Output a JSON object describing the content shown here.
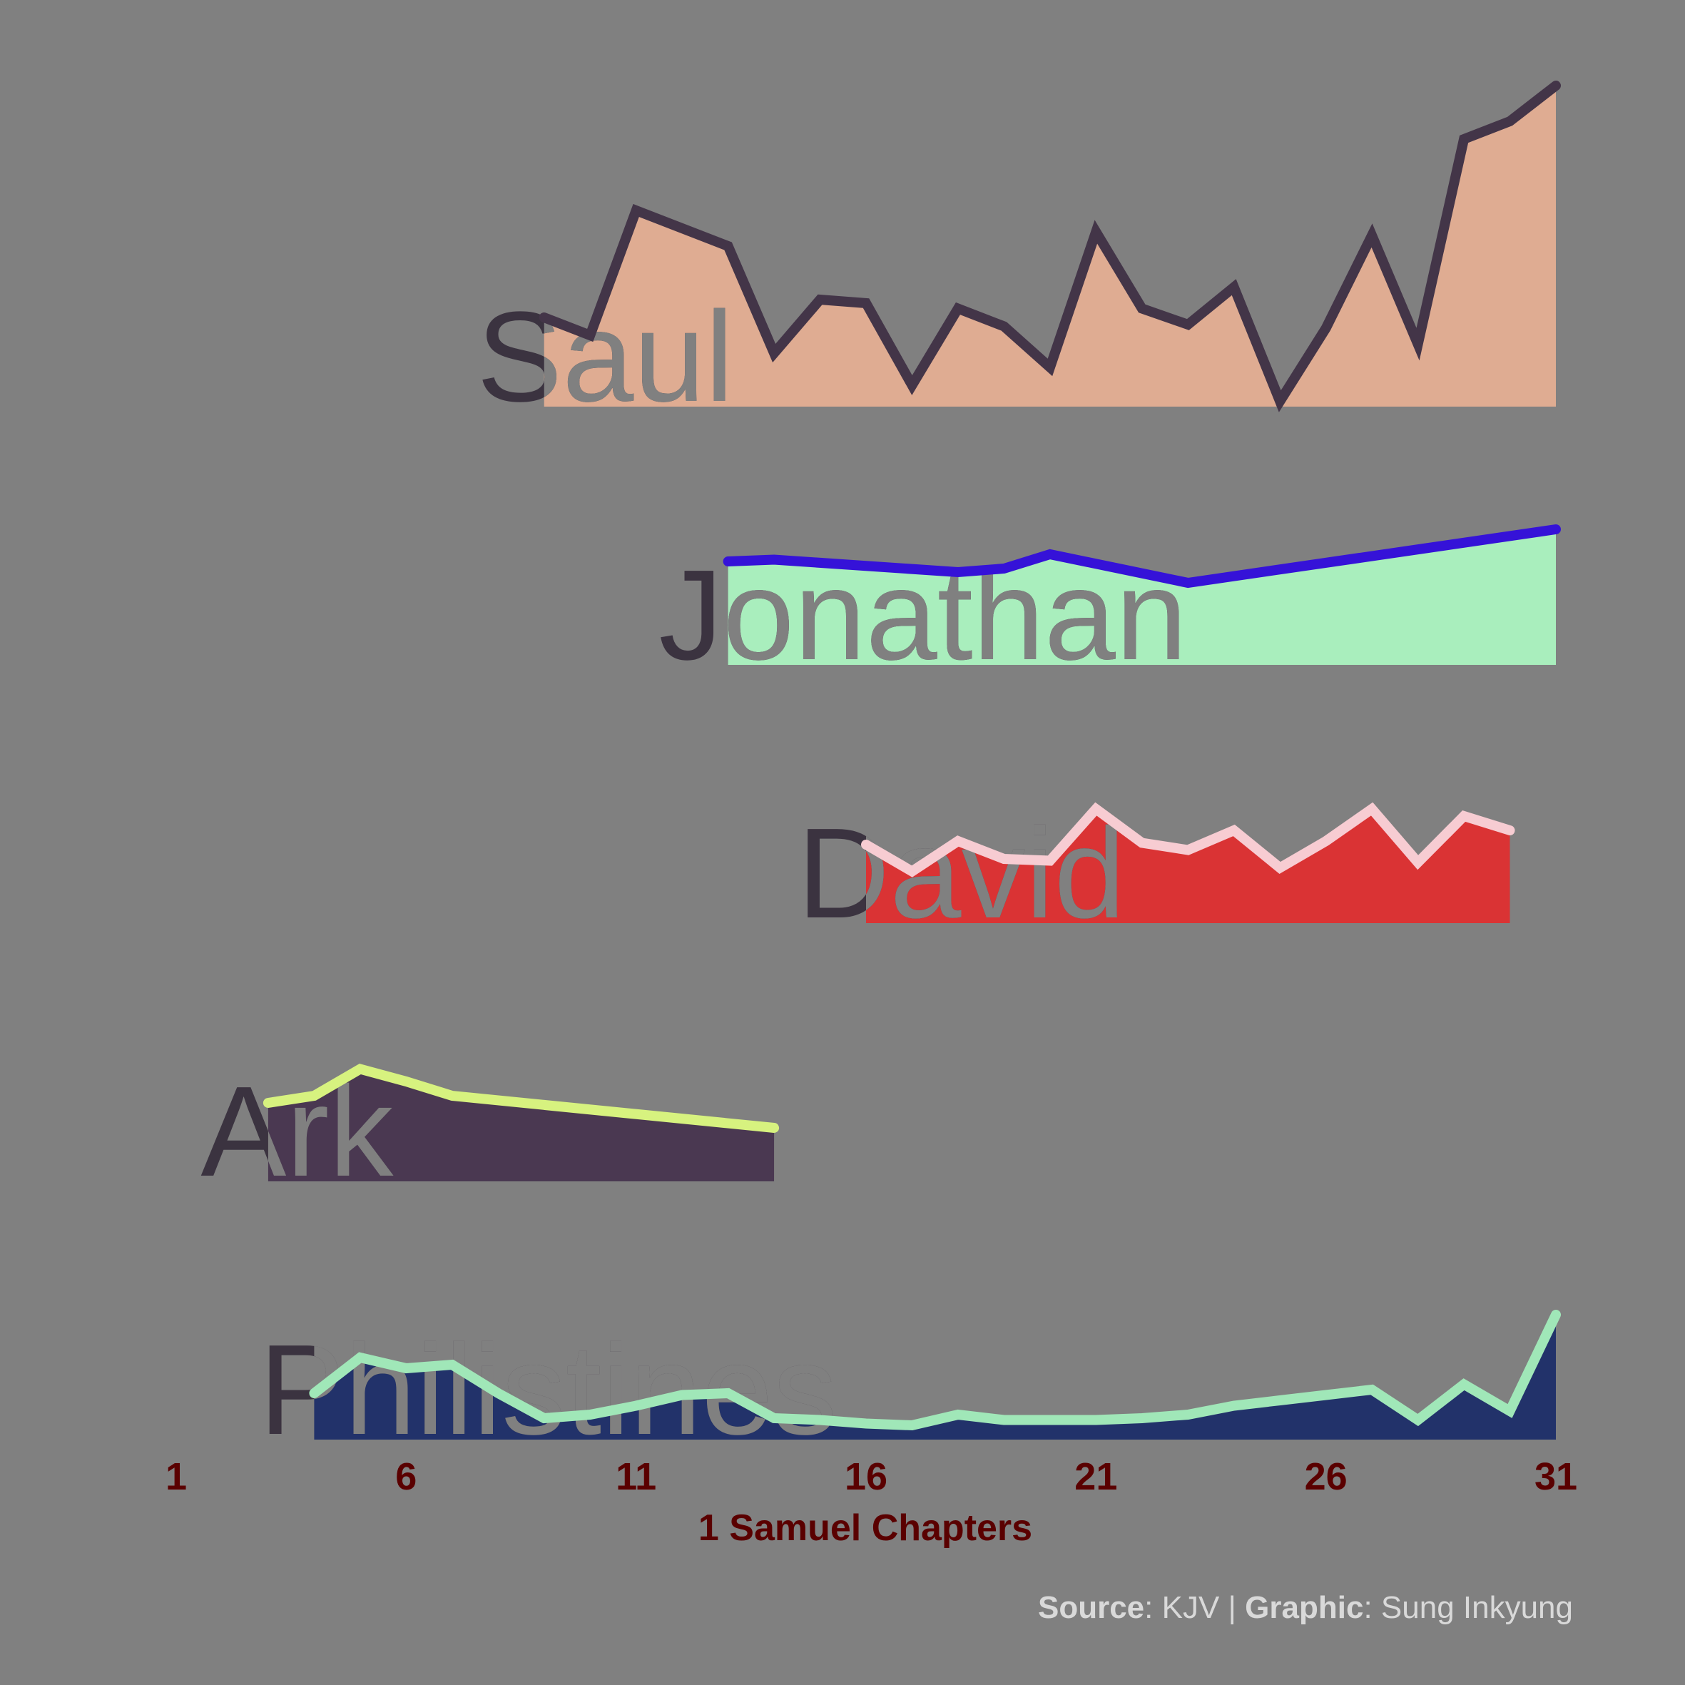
{
  "chart_data": {
    "type": "area",
    "xlabel": "1 Samuel Chapters",
    "xlim": [
      1,
      31
    ],
    "xticks": [
      "1",
      "6",
      "11",
      "16",
      "21",
      "26",
      "31"
    ],
    "background": "#808080",
    "credit": {
      "source_label": "Source",
      "source_value": ": KJV | ",
      "graphic_label": "Graphic",
      "graphic_value": ": Sung Inkyung"
    },
    "series": [
      {
        "name": "Saul",
        "fill": "#dfac92",
        "line": "#433548",
        "x": [
          9,
          10,
          11,
          12,
          13,
          14,
          15,
          16,
          17,
          18,
          19,
          20,
          21,
          22,
          23,
          24,
          25,
          26,
          27,
          28,
          29,
          30,
          31
        ],
        "y": [
          5,
          4,
          11,
          10,
          9,
          3,
          6,
          5.8,
          1.2,
          5.5,
          4.5,
          2.2,
          9.8,
          5.5,
          4.6,
          6.7,
          0.3,
          4.4,
          9.6,
          3.5,
          15,
          16,
          18
        ]
      },
      {
        "name": "Jonathan",
        "fill": "#a9eebd",
        "line": "#3512d8",
        "x": [
          13,
          14,
          18,
          19,
          20,
          23,
          31
        ],
        "y": [
          5.8,
          5.9,
          5.2,
          5.4,
          6.2,
          4.6,
          7.6
        ]
      },
      {
        "name": "David",
        "fill": "#da3334",
        "line": "#f7ccd2",
        "x": [
          16,
          17,
          18,
          19,
          20,
          21,
          22,
          23,
          24,
          25,
          26,
          27,
          28,
          29,
          30
        ],
        "y": [
          4.4,
          2.9,
          4.6,
          3.6,
          3.5,
          6.4,
          4.5,
          4.1,
          5.2,
          3.1,
          4.6,
          6.4,
          3.4,
          6.0,
          5.2
        ]
      },
      {
        "name": "Ark",
        "fill": "#4a3851",
        "line": "#d7f27f",
        "x": [
          3,
          4,
          5,
          6,
          7,
          14
        ],
        "y": [
          4.4,
          4.8,
          6.3,
          5.6,
          4.8,
          3.0
        ]
      },
      {
        "name": "Philistines",
        "fill": "#22326a",
        "line": "#a0e7b8",
        "x": [
          4,
          5,
          6,
          7,
          8,
          9,
          10,
          11,
          12,
          13,
          14,
          15,
          16,
          17,
          18,
          19,
          20,
          21,
          22,
          23,
          24,
          25,
          26,
          27,
          28,
          29,
          30,
          31
        ],
        "y": [
          2.6,
          4.6,
          4.0,
          4.2,
          2.6,
          1.2,
          1.4,
          1.9,
          2.5,
          2.6,
          1.2,
          1.1,
          0.9,
          0.8,
          1.4,
          1.1,
          1.1,
          1.1,
          1.2,
          1.4,
          1.9,
          2.2,
          2.5,
          2.8,
          1.1,
          3.1,
          1.6,
          7.0
        ]
      }
    ]
  }
}
